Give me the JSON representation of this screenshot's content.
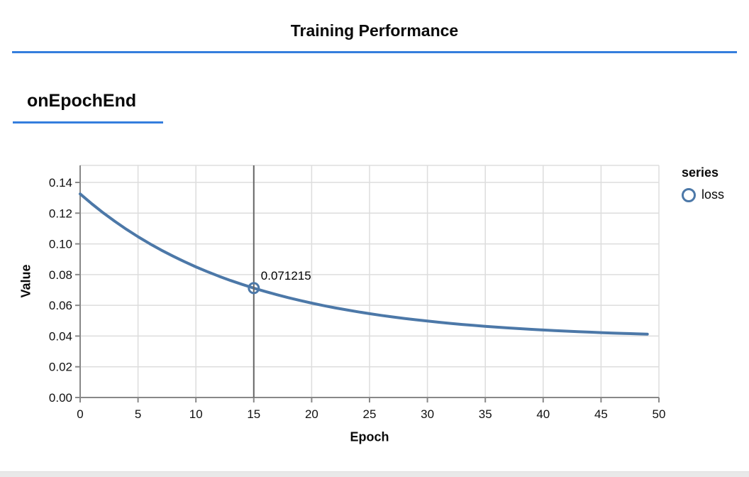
{
  "page": {
    "title": "Training Performance",
    "section_title": "onEpochEnd"
  },
  "colors": {
    "accent_rule": "#357edd",
    "line": "#4c78a8",
    "grid": "#dddddd",
    "axis": "#888888",
    "hover_rule": "#666666",
    "text": "#111111",
    "bottom_strip": "#e9e9e9"
  },
  "chart_data": {
    "type": "line",
    "title": "",
    "xlabel": "Epoch",
    "ylabel": "Value",
    "xlim": [
      0,
      50
    ],
    "ylim": [
      0,
      0.1511
    ],
    "grid": true,
    "x_ticks": [
      0,
      5,
      10,
      15,
      20,
      25,
      30,
      35,
      40,
      45,
      50
    ],
    "y_ticks": [
      0,
      0.02,
      0.04,
      0.06,
      0.08,
      0.1,
      0.12,
      0.14
    ],
    "y_tick_labels": [
      "0.00",
      "0.02",
      "0.04",
      "0.06",
      "0.08",
      "0.10",
      "0.12",
      "0.14"
    ],
    "legend": {
      "title": "series",
      "position": "right",
      "entries": [
        {
          "label": "loss",
          "color": "#4c78a8",
          "marker": "circle-outline"
        }
      ]
    },
    "series": [
      {
        "name": "loss",
        "x": [
          0,
          1,
          2,
          3,
          4,
          5,
          6,
          7,
          8,
          9,
          10,
          11,
          12,
          13,
          14,
          15,
          16,
          17,
          18,
          19,
          20,
          21,
          22,
          23,
          24,
          25,
          26,
          27,
          28,
          29,
          30,
          31,
          32,
          33,
          34,
          35,
          36,
          37,
          38,
          39,
          40,
          41,
          42,
          43,
          44,
          45,
          46,
          47,
          48,
          49
        ],
        "y": [
          0.1325,
          0.126125,
          0.120181,
          0.114638,
          0.10947,
          0.104652,
          0.10016,
          0.095971,
          0.092065,
          0.088423,
          0.085028,
          0.081862,
          0.07891,
          0.076158,
          0.073592,
          0.071215,
          0.068968,
          0.066888,
          0.064949,
          0.06314,
          0.061454,
          0.059882,
          0.058416,
          0.057049,
          0.055775,
          0.054587,
          0.053479,
          0.052446,
          0.051483,
          0.050585,
          0.049748,
          0.048967,
          0.048239,
          0.04756,
          0.046928,
          0.046338,
          0.045787,
          0.045274,
          0.044796,
          0.04435,
          0.043934,
          0.043547,
          0.043185,
          0.042848,
          0.042534,
          0.042241,
          0.041968,
          0.041713,
          0.041476,
          0.041254
        ]
      }
    ],
    "hover": {
      "series": "loss",
      "epoch": 15,
      "value": 0.071215,
      "label": "0.071215"
    }
  }
}
